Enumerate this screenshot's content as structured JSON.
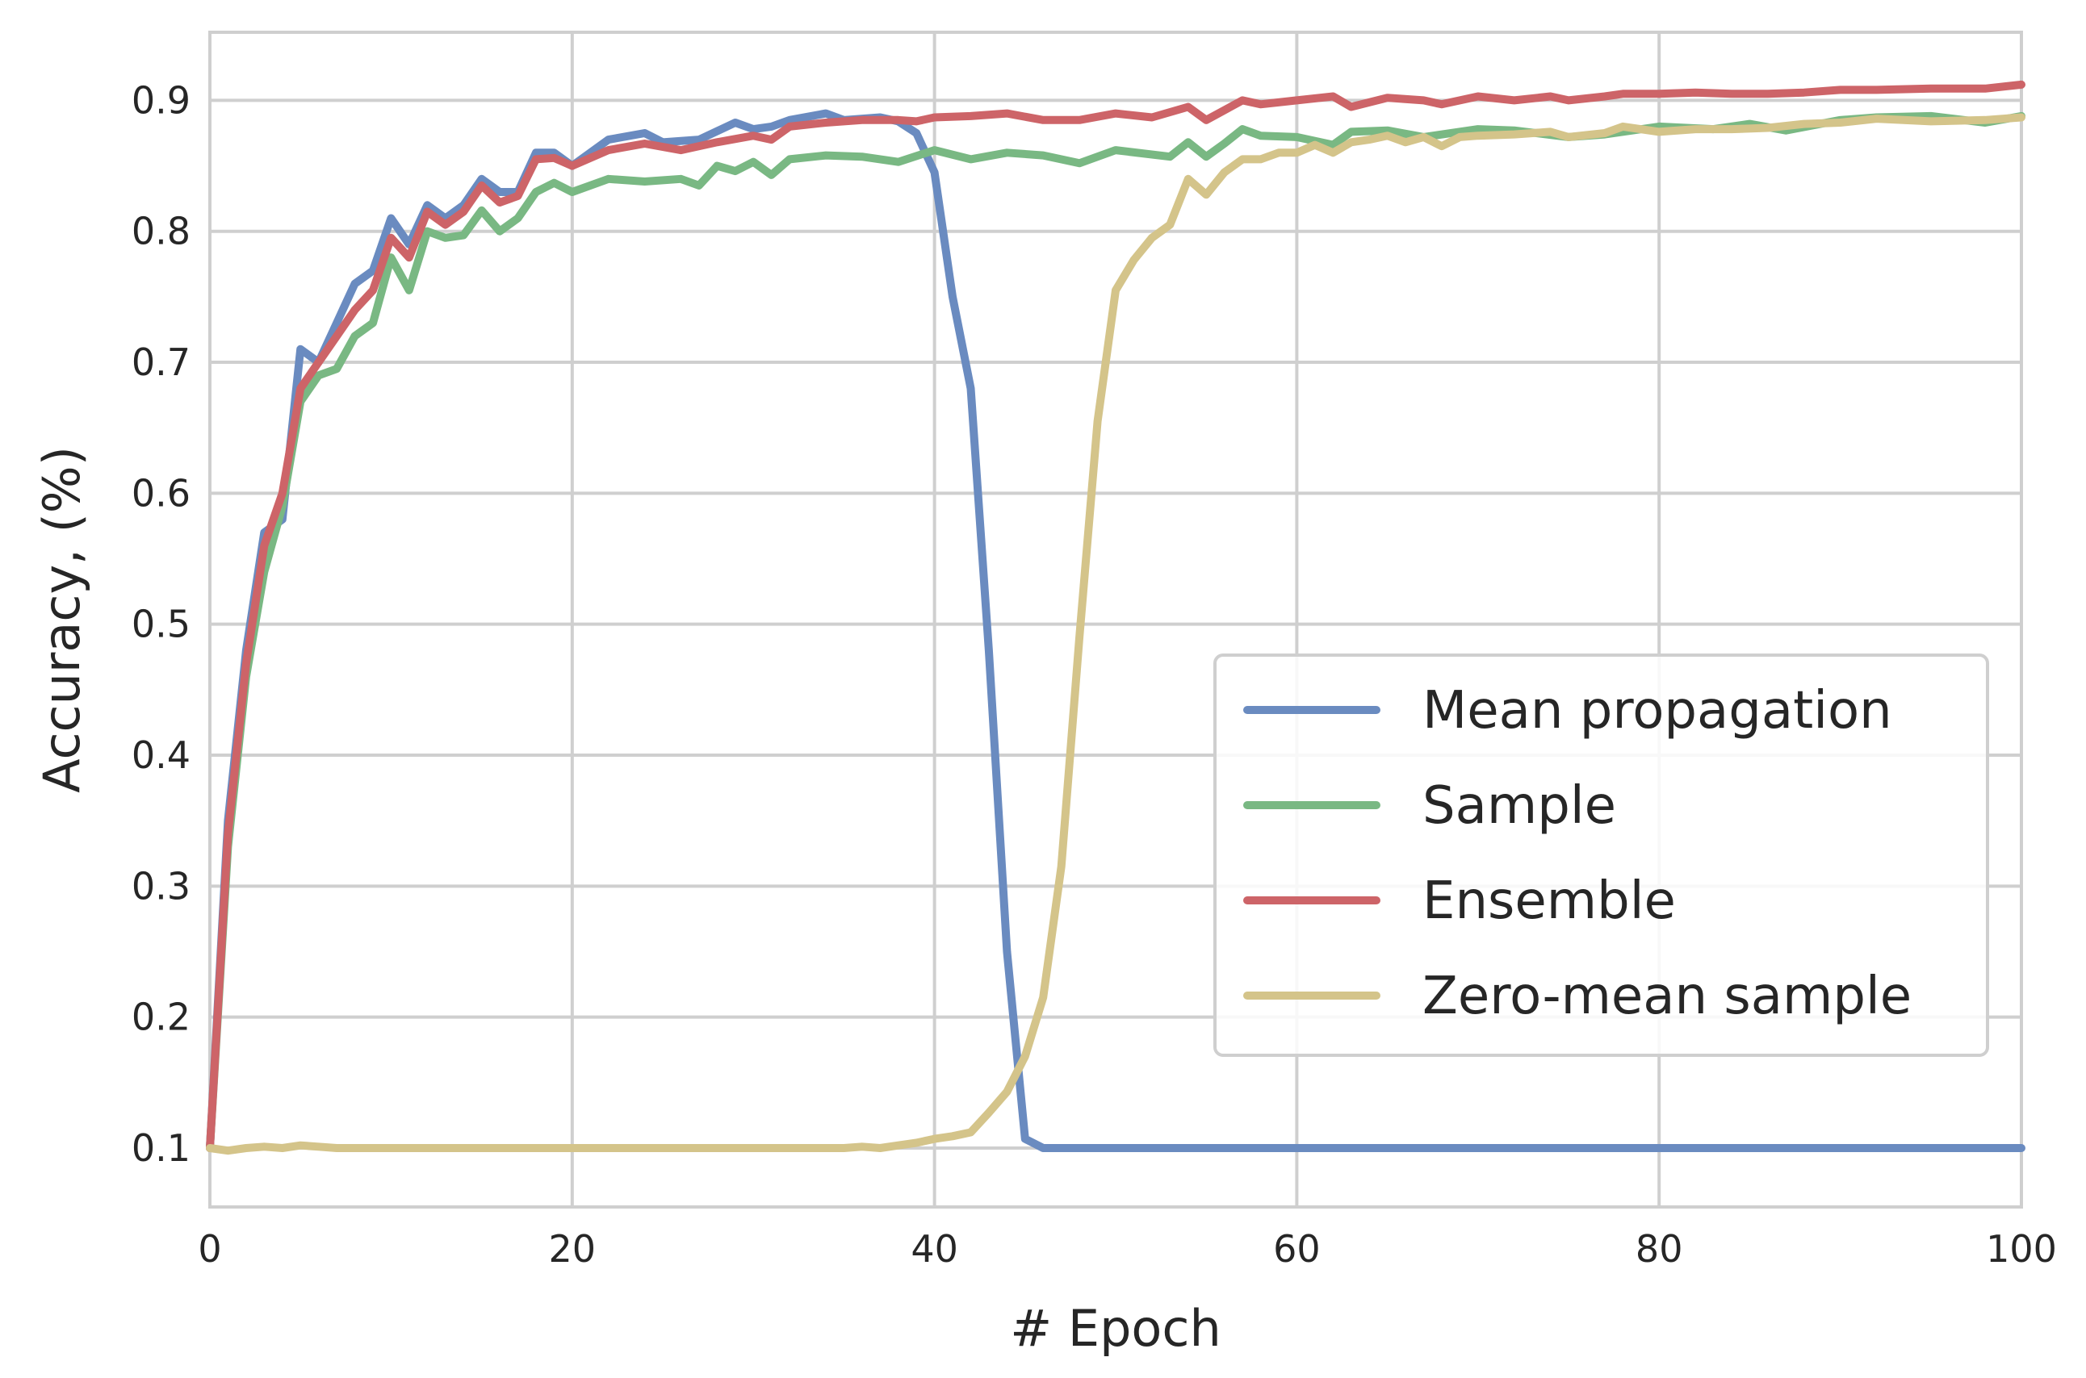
{
  "chart_data": {
    "type": "line",
    "title": "",
    "xlabel": "# Epoch",
    "ylabel": "Accuracy, (%)",
    "xlim": [
      0,
      100
    ],
    "ylim": [
      0.055,
      0.952
    ],
    "xticks": [
      0,
      20,
      40,
      60,
      80,
      100
    ],
    "yticks": [
      0.1,
      0.2,
      0.3,
      0.4,
      0.5,
      0.6,
      0.7,
      0.8,
      0.9
    ],
    "grid": true,
    "legend_position": "lower-right",
    "series": [
      {
        "name": "Mean propagation",
        "color": "#6a8bc0",
        "x": [
          0,
          1,
          2,
          3,
          4,
          5,
          6,
          7,
          8,
          9,
          10,
          11,
          12,
          13,
          14,
          15,
          16,
          17,
          18,
          19,
          20,
          22,
          24,
          25,
          27,
          29,
          30,
          31,
          32,
          34,
          35,
          37,
          38,
          39,
          40,
          41,
          42,
          43,
          44,
          45,
          46,
          48,
          50,
          55,
          60,
          70,
          80,
          90,
          100
        ],
        "y": [
          0.1,
          0.35,
          0.48,
          0.57,
          0.58,
          0.71,
          0.7,
          0.73,
          0.76,
          0.77,
          0.81,
          0.79,
          0.82,
          0.81,
          0.82,
          0.84,
          0.83,
          0.83,
          0.86,
          0.86,
          0.85,
          0.87,
          0.875,
          0.868,
          0.87,
          0.883,
          0.878,
          0.88,
          0.885,
          0.89,
          0.885,
          0.887,
          0.884,
          0.875,
          0.845,
          0.75,
          0.68,
          0.48,
          0.25,
          0.107,
          0.1,
          0.1,
          0.1,
          0.1,
          0.1,
          0.1,
          0.1,
          0.1,
          0.1
        ]
      },
      {
        "name": "Sample",
        "color": "#79b883",
        "x": [
          0,
          1,
          2,
          3,
          4,
          5,
          6,
          7,
          8,
          9,
          10,
          11,
          12,
          13,
          14,
          15,
          16,
          17,
          18,
          19,
          20,
          22,
          24,
          26,
          27,
          28,
          29,
          30,
          31,
          32,
          34,
          36,
          38,
          40,
          42,
          44,
          46,
          48,
          50,
          53,
          54,
          55,
          56,
          57,
          58,
          60,
          62,
          63,
          65,
          67,
          70,
          72,
          75,
          77,
          80,
          83,
          85,
          87,
          90,
          92,
          95,
          98,
          100
        ],
        "y": [
          0.1,
          0.33,
          0.46,
          0.54,
          0.59,
          0.67,
          0.69,
          0.695,
          0.72,
          0.73,
          0.78,
          0.755,
          0.8,
          0.795,
          0.797,
          0.816,
          0.8,
          0.81,
          0.83,
          0.837,
          0.83,
          0.84,
          0.838,
          0.84,
          0.835,
          0.85,
          0.846,
          0.853,
          0.843,
          0.855,
          0.858,
          0.857,
          0.853,
          0.862,
          0.855,
          0.86,
          0.858,
          0.852,
          0.862,
          0.857,
          0.868,
          0.857,
          0.867,
          0.878,
          0.873,
          0.872,
          0.866,
          0.876,
          0.877,
          0.872,
          0.878,
          0.877,
          0.872,
          0.874,
          0.88,
          0.878,
          0.882,
          0.877,
          0.885,
          0.887,
          0.888,
          0.883,
          0.888
        ]
      },
      {
        "name": "Ensemble",
        "color": "#cd6468",
        "x": [
          0,
          1,
          2,
          3,
          4,
          5,
          6,
          7,
          8,
          9,
          10,
          11,
          12,
          13,
          14,
          15,
          16,
          17,
          18,
          19,
          20,
          22,
          24,
          26,
          28,
          30,
          31,
          32,
          34,
          36,
          38,
          39,
          40,
          42,
          44,
          46,
          48,
          50,
          52,
          54,
          55,
          57,
          58,
          60,
          62,
          63,
          65,
          67,
          68,
          70,
          72,
          74,
          75,
          77,
          78,
          80,
          82,
          84,
          86,
          88,
          90,
          92,
          95,
          98,
          100
        ],
        "y": [
          0.1,
          0.34,
          0.47,
          0.56,
          0.6,
          0.68,
          0.7,
          0.72,
          0.74,
          0.755,
          0.795,
          0.78,
          0.815,
          0.805,
          0.815,
          0.835,
          0.822,
          0.827,
          0.855,
          0.856,
          0.85,
          0.862,
          0.867,
          0.862,
          0.868,
          0.873,
          0.87,
          0.88,
          0.883,
          0.885,
          0.885,
          0.884,
          0.887,
          0.888,
          0.89,
          0.885,
          0.885,
          0.89,
          0.887,
          0.895,
          0.885,
          0.9,
          0.897,
          0.9,
          0.903,
          0.895,
          0.902,
          0.9,
          0.897,
          0.903,
          0.9,
          0.903,
          0.9,
          0.903,
          0.905,
          0.905,
          0.906,
          0.905,
          0.905,
          0.906,
          0.908,
          0.908,
          0.909,
          0.909,
          0.912
        ]
      },
      {
        "name": "Zero-mean sample",
        "color": "#d4c48a",
        "x": [
          0,
          1,
          2,
          3,
          4,
          5,
          6,
          7,
          8,
          10,
          15,
          20,
          25,
          30,
          35,
          36,
          37,
          38,
          39,
          40,
          41,
          42,
          43,
          44,
          45,
          46,
          47,
          48,
          49,
          50,
          51,
          52,
          53,
          54,
          55,
          56,
          57,
          58,
          59,
          60,
          61,
          62,
          63,
          64,
          65,
          66,
          67,
          68,
          69,
          70,
          72,
          74,
          75,
          77,
          78,
          80,
          82,
          84,
          86,
          88,
          90,
          92,
          95,
          98,
          100
        ],
        "y": [
          0.1,
          0.098,
          0.1,
          0.101,
          0.1,
          0.102,
          0.101,
          0.1,
          0.1,
          0.1,
          0.1,
          0.1,
          0.1,
          0.1,
          0.1,
          0.101,
          0.1,
          0.102,
          0.104,
          0.107,
          0.109,
          0.112,
          0.127,
          0.143,
          0.17,
          0.215,
          0.315,
          0.49,
          0.655,
          0.755,
          0.778,
          0.795,
          0.805,
          0.84,
          0.828,
          0.845,
          0.855,
          0.855,
          0.86,
          0.86,
          0.866,
          0.86,
          0.868,
          0.87,
          0.873,
          0.868,
          0.872,
          0.865,
          0.872,
          0.873,
          0.874,
          0.876,
          0.872,
          0.875,
          0.88,
          0.876,
          0.878,
          0.878,
          0.879,
          0.882,
          0.883,
          0.886,
          0.884,
          0.885,
          0.887
        ]
      }
    ]
  }
}
